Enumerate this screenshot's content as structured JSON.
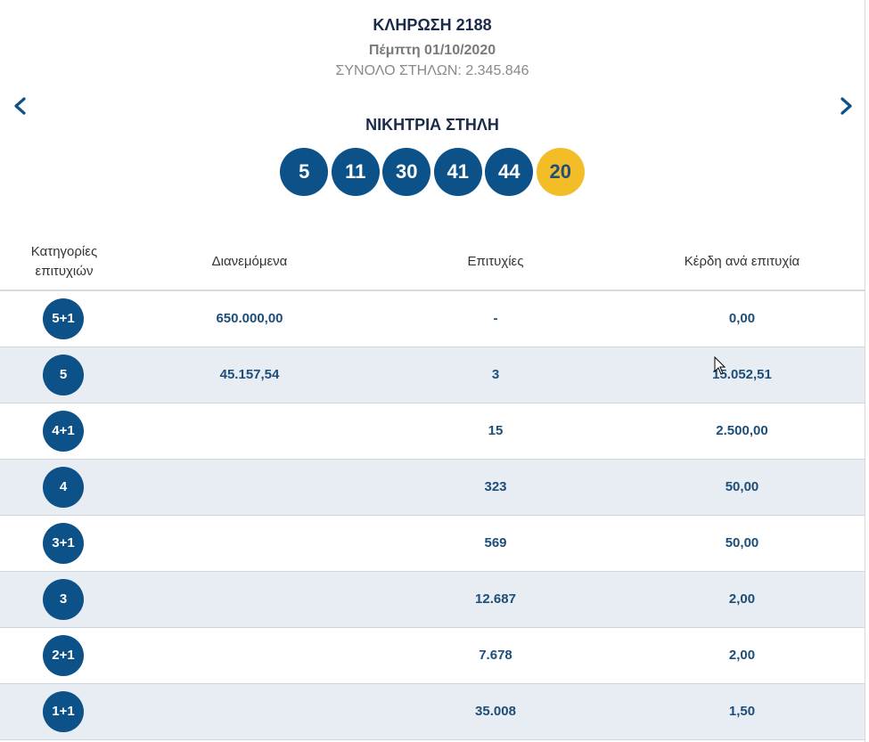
{
  "header": {
    "title": "ΚΛΗΡΩΣΗ 2188",
    "date": "Πέμπτη 01/10/2020",
    "total_columns": "ΣΥΝΟΛΟ ΣΤΗΛΩΝ: 2.345.846",
    "prev_icon": "chevron-left-icon",
    "next_icon": "chevron-right-icon"
  },
  "winning": {
    "title": "ΝΙΚΗΤΡΙΑ ΣΤΗΛΗ",
    "numbers": [
      "5",
      "11",
      "30",
      "41",
      "44"
    ],
    "bonus": "20"
  },
  "table": {
    "headers": {
      "category_line1": "Κατηγορίες",
      "category_line2": "επιτυχιών",
      "distributed": "Διανεμόμενα",
      "winners": "Επιτυχίες",
      "prize": "Κέρδη ανά επιτυχία"
    },
    "rows": [
      {
        "category": "5+1",
        "distributed": "650.000,00",
        "winners": "-",
        "prize": "0,00"
      },
      {
        "category": "5",
        "distributed": "45.157,54",
        "winners": "3",
        "prize": "15.052,51"
      },
      {
        "category": "4+1",
        "distributed": "",
        "winners": "15",
        "prize": "2.500,00"
      },
      {
        "category": "4",
        "distributed": "",
        "winners": "323",
        "prize": "50,00"
      },
      {
        "category": "3+1",
        "distributed": "",
        "winners": "569",
        "prize": "50,00"
      },
      {
        "category": "3",
        "distributed": "",
        "winners": "12.687",
        "prize": "2,00"
      },
      {
        "category": "2+1",
        "distributed": "",
        "winners": "7.678",
        "prize": "2,00"
      },
      {
        "category": "1+1",
        "distributed": "",
        "winners": "35.008",
        "prize": "1,50"
      }
    ]
  },
  "colors": {
    "primary_blue": "#0d5189",
    "bonus_yellow": "#f3bd28",
    "row_alt": "#e8ecf3",
    "value_text": "#1d4e79"
  }
}
